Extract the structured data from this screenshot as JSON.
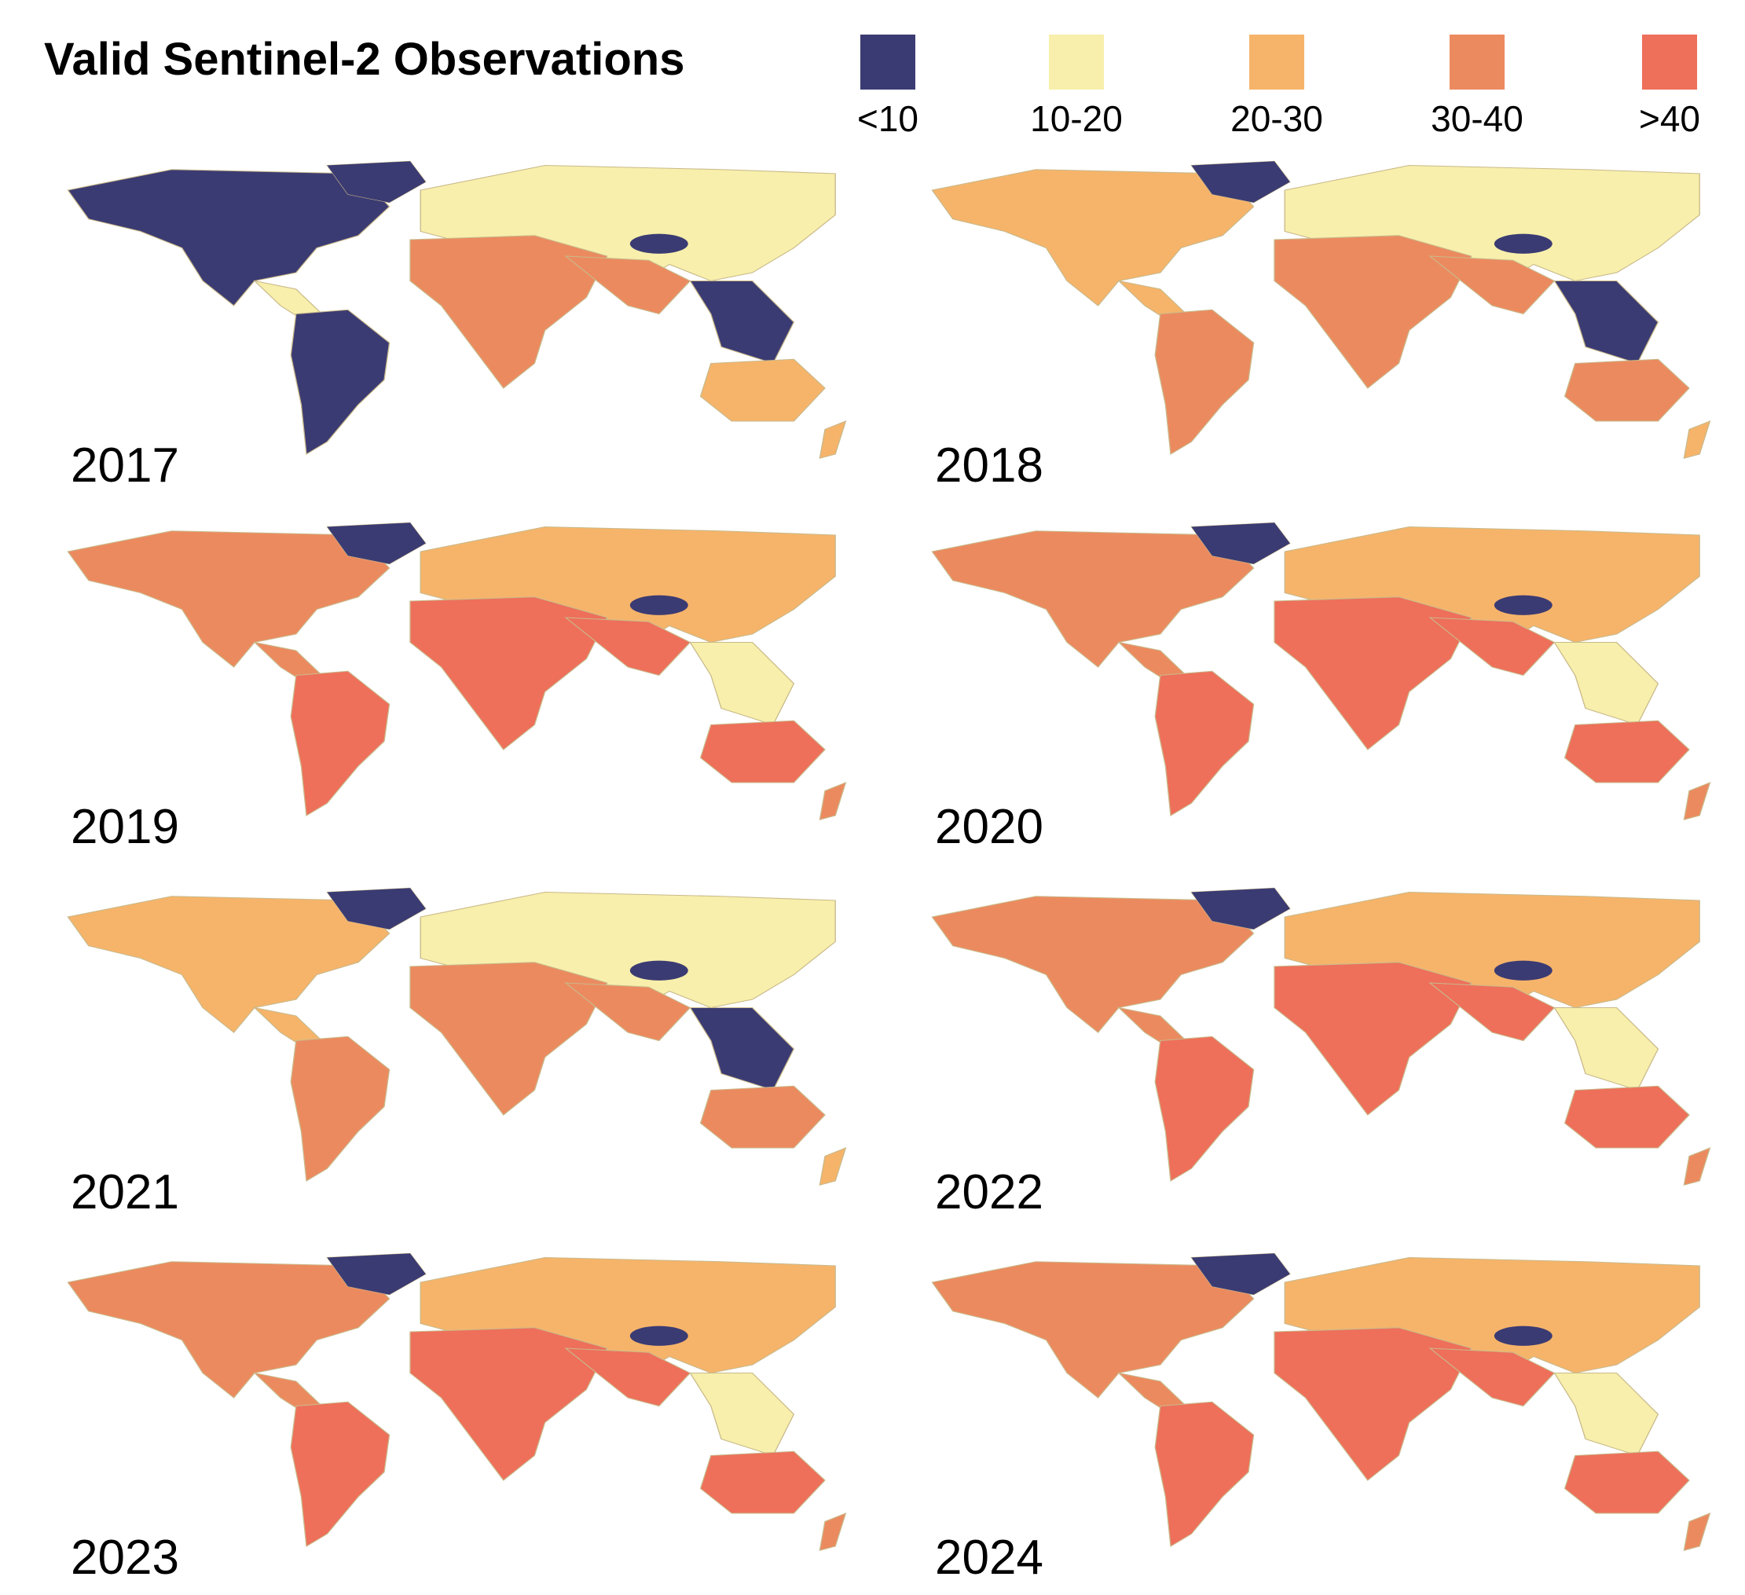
{
  "title": "Valid Sentinel-2 Observations",
  "legend": [
    {
      "label": "<10",
      "color": "#3b3b73"
    },
    {
      "label": "10-20",
      "color": "#f7efab"
    },
    {
      "label": "20-30",
      "color": "#f6b46a"
    },
    {
      "label": "30-40",
      "color": "#ec8a5f"
    },
    {
      "label": ">40",
      "color": "#ee6f5a"
    }
  ],
  "panels": [
    {
      "year": "2017",
      "scheme": "low"
    },
    {
      "year": "2018",
      "scheme": "mid"
    },
    {
      "year": "2019",
      "scheme": "high"
    },
    {
      "year": "2020",
      "scheme": "high"
    },
    {
      "year": "2021",
      "scheme": "mid"
    },
    {
      "year": "2022",
      "scheme": "high"
    },
    {
      "year": "2023",
      "scheme": "high"
    },
    {
      "year": "2024",
      "scheme": "high"
    }
  ]
}
